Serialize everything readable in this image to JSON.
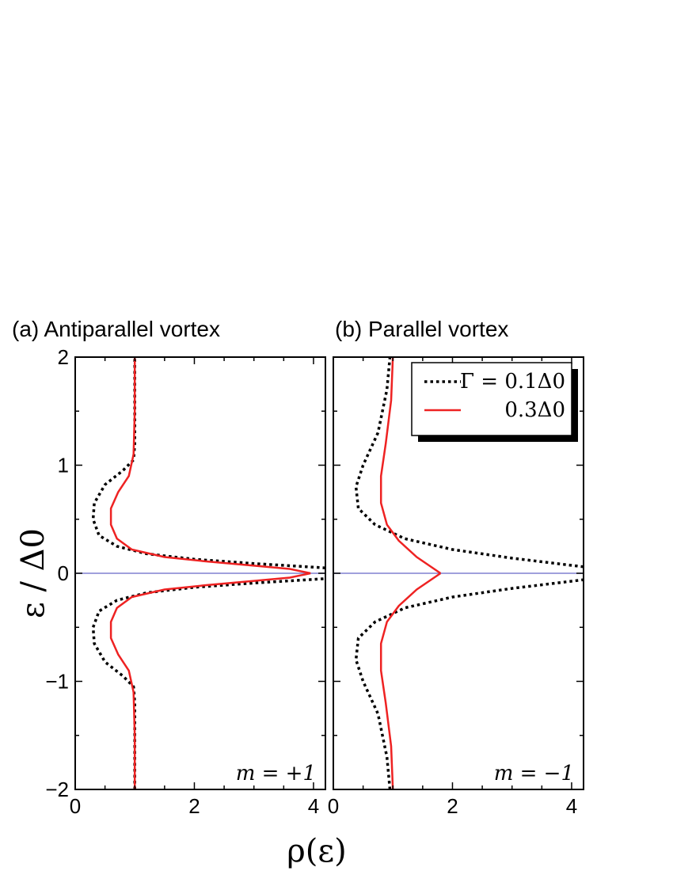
{
  "chart_data": [
    {
      "type": "line",
      "title": "(a) Antiparallel vortex",
      "ylabel": "ε / Δ0",
      "xlabel": "",
      "xlim": [
        0,
        4.2
      ],
      "ylim": [
        -2,
        2
      ],
      "xticks": [
        "0",
        "2",
        "4"
      ],
      "yticks": [
        "−2",
        "−1",
        "0",
        "1",
        "2"
      ],
      "annotation": "m = +1",
      "reference_line": {
        "y": 0,
        "color": "#8080d0"
      },
      "series": [
        {
          "name": "Γ = 0.1Δ0",
          "style": "dotted",
          "color": "#000000",
          "points": [
            [
              1.0,
              -2.0
            ],
            [
              1.0,
              -1.5
            ],
            [
              1.0,
              -1.2
            ],
            [
              0.98,
              -1.05
            ],
            [
              0.8,
              -0.95
            ],
            [
              0.5,
              -0.82
            ],
            [
              0.32,
              -0.65
            ],
            [
              0.3,
              -0.5
            ],
            [
              0.4,
              -0.35
            ],
            [
              0.7,
              -0.25
            ],
            [
              1.2,
              -0.18
            ],
            [
              2.0,
              -0.13
            ],
            [
              3.0,
              -0.09
            ],
            [
              4.2,
              -0.05
            ]
          ],
          "points_upper": [
            [
              4.2,
              0.05
            ],
            [
              3.0,
              0.09
            ],
            [
              2.0,
              0.13
            ],
            [
              1.2,
              0.18
            ],
            [
              0.7,
              0.25
            ],
            [
              0.4,
              0.35
            ],
            [
              0.3,
              0.5
            ],
            [
              0.32,
              0.65
            ],
            [
              0.5,
              0.82
            ],
            [
              0.8,
              0.95
            ],
            [
              0.98,
              1.05
            ],
            [
              1.0,
              1.2
            ],
            [
              1.0,
              1.5
            ],
            [
              1.0,
              2.0
            ]
          ]
        },
        {
          "name": "0.3Δ0",
          "style": "solid",
          "color": "#ee2222",
          "points": [
            [
              1.0,
              -2.0
            ],
            [
              1.0,
              -1.5
            ],
            [
              0.98,
              -1.1
            ],
            [
              0.9,
              -0.9
            ],
            [
              0.72,
              -0.75
            ],
            [
              0.6,
              -0.6
            ],
            [
              0.6,
              -0.45
            ],
            [
              0.7,
              -0.32
            ],
            [
              0.95,
              -0.22
            ],
            [
              1.5,
              -0.15
            ],
            [
              2.2,
              -0.11
            ],
            [
              3.0,
              -0.07
            ],
            [
              3.6,
              -0.04
            ],
            [
              3.95,
              0.0
            ]
          ],
          "points_upper": [
            [
              3.95,
              0.0
            ],
            [
              3.6,
              0.04
            ],
            [
              3.0,
              0.07
            ],
            [
              2.2,
              0.11
            ],
            [
              1.5,
              0.15
            ],
            [
              0.95,
              0.22
            ],
            [
              0.7,
              0.32
            ],
            [
              0.6,
              0.45
            ],
            [
              0.6,
              0.6
            ],
            [
              0.72,
              0.75
            ],
            [
              0.9,
              0.9
            ],
            [
              0.98,
              1.1
            ],
            [
              1.0,
              1.5
            ],
            [
              1.0,
              2.0
            ]
          ]
        }
      ]
    },
    {
      "type": "line",
      "title": "(b) Parallel vortex",
      "ylabel": "",
      "xlabel": "ρ(ε)",
      "xlim": [
        0,
        4.2
      ],
      "ylim": [
        -2,
        2
      ],
      "xticks": [
        "0",
        "2",
        "4"
      ],
      "yticks": [],
      "annotation": "m = −1",
      "reference_line": {
        "y": 0,
        "color": "#8080d0"
      },
      "legend": {
        "placement": "top-right",
        "entries": [
          {
            "label": "Γ = 0.1Δ0",
            "style": "dotted",
            "color": "#000000"
          },
          {
            "label": "0.3Δ0",
            "style": "solid",
            "color": "#ee2222"
          }
        ]
      },
      "series": [
        {
          "name": "Γ = 0.1Δ0",
          "style": "dotted",
          "color": "#000000",
          "points": [
            [
              0.95,
              -2.0
            ],
            [
              0.9,
              -1.7
            ],
            [
              0.75,
              -1.3
            ],
            [
              0.5,
              -1.0
            ],
            [
              0.38,
              -0.8
            ],
            [
              0.42,
              -0.6
            ],
            [
              0.7,
              -0.45
            ],
            [
              1.2,
              -0.32
            ],
            [
              2.0,
              -0.22
            ],
            [
              3.0,
              -0.14
            ],
            [
              4.2,
              -0.06
            ]
          ],
          "points_upper": [
            [
              4.2,
              0.06
            ],
            [
              3.0,
              0.14
            ],
            [
              2.0,
              0.22
            ],
            [
              1.2,
              0.32
            ],
            [
              0.7,
              0.45
            ],
            [
              0.42,
              0.6
            ],
            [
              0.38,
              0.8
            ],
            [
              0.5,
              1.0
            ],
            [
              0.75,
              1.3
            ],
            [
              0.9,
              1.7
            ],
            [
              0.95,
              2.0
            ]
          ]
        },
        {
          "name": "0.3Δ0",
          "style": "solid",
          "color": "#ee2222",
          "points": [
            [
              1.0,
              -2.0
            ],
            [
              0.97,
              -1.6
            ],
            [
              0.88,
              -1.2
            ],
            [
              0.8,
              -0.9
            ],
            [
              0.8,
              -0.65
            ],
            [
              0.9,
              -0.45
            ],
            [
              1.1,
              -0.3
            ],
            [
              1.4,
              -0.15
            ],
            [
              1.8,
              0.0
            ]
          ],
          "points_upper": [
            [
              1.8,
              0.0
            ],
            [
              1.4,
              0.15
            ],
            [
              1.1,
              0.3
            ],
            [
              0.9,
              0.45
            ],
            [
              0.8,
              0.65
            ],
            [
              0.8,
              0.9
            ],
            [
              0.88,
              1.2
            ],
            [
              0.97,
              1.6
            ],
            [
              1.0,
              2.0
            ]
          ]
        }
      ]
    }
  ]
}
